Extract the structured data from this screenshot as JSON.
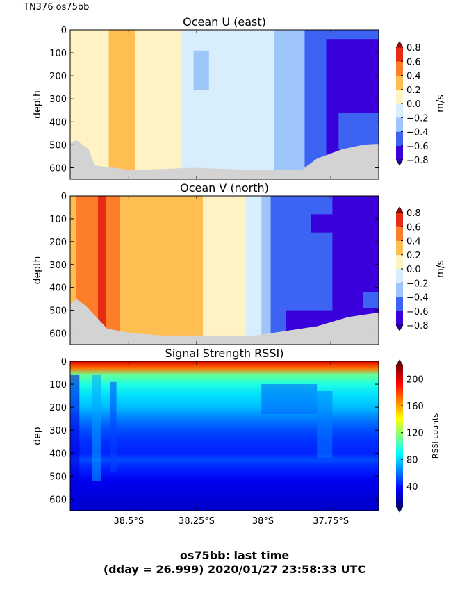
{
  "header_label": "TN376 os75bb",
  "figure_title": {
    "line1": "os75bb: last time",
    "line2": "(dday = 26.999) 2020/01/27 23:58:33 UTC"
  },
  "chart_data": [
    {
      "type": "heatmap",
      "title": "Ocean U (east)",
      "ylabel": "depth",
      "ylim": [
        650,
        0
      ],
      "yticks": [
        0,
        100,
        200,
        300,
        400,
        500,
        600
      ],
      "xlim": [
        "38.7°S",
        "37.6°S"
      ],
      "colorbar": {
        "label": "m/s",
        "ticks": [
          "0.8",
          "0.6",
          "0.4",
          "0.2",
          "0.0",
          "−0.2",
          "−0.4",
          "−0.6",
          "−0.8"
        ],
        "min": -0.8,
        "max": 0.8,
        "levels": [
          {
            "from": -0.8,
            "to": -0.6,
            "color": "#3a00dc"
          },
          {
            "from": -0.6,
            "to": -0.4,
            "color": "#3c63f2"
          },
          {
            "from": -0.4,
            "to": -0.2,
            "color": "#9ec6fb"
          },
          {
            "from": -0.2,
            "to": 0.0,
            "color": "#d9eefd"
          },
          {
            "from": 0.0,
            "to": 0.2,
            "color": "#fff3c5"
          },
          {
            "from": 0.2,
            "to": 0.4,
            "color": "#ffbe52"
          },
          {
            "from": 0.4,
            "to": 0.6,
            "color": "#fd7d2a"
          },
          {
            "from": 0.6,
            "to": 0.8,
            "color": "#e62d14"
          }
        ]
      },
      "bands": [
        {
          "x_from": 0.0,
          "x_to": 0.125,
          "value": 0.1
        },
        {
          "x_from": 0.125,
          "x_to": 0.21,
          "value": 0.3
        },
        {
          "x_from": 0.21,
          "x_to": 0.36,
          "value": 0.1
        },
        {
          "x_from": 0.36,
          "x_to": 0.6,
          "value": -0.1
        },
        {
          "x_from": 0.6,
          "x_to": 0.66,
          "value": -0.1
        },
        {
          "x_from": 0.66,
          "x_to": 0.76,
          "value": -0.3
        },
        {
          "x_from": 0.76,
          "x_to": 0.83,
          "value": -0.5
        },
        {
          "x_from": 0.83,
          "x_to": 1.0,
          "value": -0.7
        }
      ],
      "patches": [
        {
          "x_from": 0.4,
          "x_to": 0.45,
          "y_from": 90,
          "y_to": 260,
          "value": -0.3
        },
        {
          "x_from": 0.82,
          "x_to": 1.0,
          "y_from": 0,
          "y_to": 40,
          "value": -0.5
        },
        {
          "x_from": 0.87,
          "x_to": 1.0,
          "y_from": 360,
          "y_to": 520,
          "value": -0.5
        }
      ],
      "no_data_bottom": [
        [
          0.0,
          490
        ],
        [
          0.02,
          480
        ],
        [
          0.06,
          520
        ],
        [
          0.08,
          590
        ],
        [
          0.2,
          610
        ],
        [
          0.4,
          600
        ],
        [
          0.6,
          610
        ],
        [
          0.75,
          610
        ],
        [
          0.8,
          560
        ],
        [
          0.88,
          520
        ],
        [
          0.95,
          500
        ],
        [
          1.0,
          495
        ]
      ]
    },
    {
      "type": "heatmap",
      "title": "Ocean V (north)",
      "ylabel": "depth",
      "ylim": [
        650,
        0
      ],
      "yticks": [
        0,
        100,
        200,
        300,
        400,
        500,
        600
      ],
      "xlim": [
        "38.7°S",
        "37.6°S"
      ],
      "colorbar": {
        "label": "m/s",
        "ticks": [
          "0.8",
          "0.6",
          "0.4",
          "0.2",
          "0.0",
          "−0.2",
          "−0.4",
          "−0.6",
          "−0.8"
        ],
        "min": -0.8,
        "max": 0.8,
        "levels": [
          {
            "from": -0.8,
            "to": -0.6,
            "color": "#3a00dc"
          },
          {
            "from": -0.6,
            "to": -0.4,
            "color": "#3c63f2"
          },
          {
            "from": -0.4,
            "to": -0.2,
            "color": "#9ec6fb"
          },
          {
            "from": -0.2,
            "to": 0.0,
            "color": "#d9eefd"
          },
          {
            "from": 0.0,
            "to": 0.2,
            "color": "#fff3c5"
          },
          {
            "from": 0.2,
            "to": 0.4,
            "color": "#ffbe52"
          },
          {
            "from": 0.4,
            "to": 0.6,
            "color": "#fd7d2a"
          },
          {
            "from": 0.6,
            "to": 0.8,
            "color": "#e62d14"
          }
        ]
      },
      "bands": [
        {
          "x_from": 0.0,
          "x_to": 0.02,
          "value": 0.3
        },
        {
          "x_from": 0.02,
          "x_to": 0.09,
          "value": 0.5
        },
        {
          "x_from": 0.09,
          "x_to": 0.115,
          "value": 0.7
        },
        {
          "x_from": 0.115,
          "x_to": 0.16,
          "value": 0.5
        },
        {
          "x_from": 0.16,
          "x_to": 0.43,
          "value": 0.3
        },
        {
          "x_from": 0.43,
          "x_to": 0.57,
          "value": 0.1
        },
        {
          "x_from": 0.57,
          "x_to": 0.62,
          "value": -0.1
        },
        {
          "x_from": 0.62,
          "x_to": 0.65,
          "value": -0.3
        },
        {
          "x_from": 0.65,
          "x_to": 0.7,
          "value": -0.5
        },
        {
          "x_from": 0.7,
          "x_to": 1.0,
          "value": -0.7
        }
      ],
      "patches": [
        {
          "x_from": 0.7,
          "x_to": 0.85,
          "y_from": 0,
          "y_to": 500,
          "value": -0.5
        },
        {
          "x_from": 0.78,
          "x_to": 0.9,
          "y_from": 80,
          "y_to": 160,
          "value": -0.7
        },
        {
          "x_from": 0.95,
          "x_to": 1.0,
          "y_from": 420,
          "y_to": 490,
          "value": -0.5
        }
      ],
      "no_data_bottom": [
        [
          0.0,
          470
        ],
        [
          0.02,
          450
        ],
        [
          0.05,
          480
        ],
        [
          0.12,
          580
        ],
        [
          0.2,
          600
        ],
        [
          0.3,
          610
        ],
        [
          0.6,
          610
        ],
        [
          0.8,
          570
        ],
        [
          0.9,
          530
        ],
        [
          1.0,
          510
        ]
      ]
    },
    {
      "type": "heatmap",
      "title": "Signal Strength RSSI)",
      "ylabel": "dep",
      "ylim": [
        650,
        0
      ],
      "yticks": [
        0,
        100,
        200,
        300,
        400,
        500,
        600
      ],
      "xlim": [
        "38.7°S",
        "37.6°S"
      ],
      "xticks": [
        "38.5°S",
        "38.25°S",
        "38°S",
        "37.75°S"
      ],
      "colorbar": {
        "label": "RSSI counts",
        "ticks": [
          "200",
          "160",
          "120",
          "80",
          "40"
        ],
        "min": 10,
        "max": 220,
        "stops": [
          "#00007f",
          "#0000ff",
          "#007fff",
          "#00ffff",
          "#7fff7f",
          "#ffff00",
          "#ff7f00",
          "#ff0000",
          "#7f0000"
        ]
      },
      "depth_profile": [
        {
          "depth": 0,
          "rssi": 200
        },
        {
          "depth": 30,
          "rssi": 170
        },
        {
          "depth": 60,
          "rssi": 110
        },
        {
          "depth": 100,
          "rssi": 95
        },
        {
          "depth": 150,
          "rssi": 82
        },
        {
          "depth": 200,
          "rssi": 75
        },
        {
          "depth": 250,
          "rssi": 62
        },
        {
          "depth": 300,
          "rssi": 52
        },
        {
          "depth": 350,
          "rssi": 46
        },
        {
          "depth": 400,
          "rssi": 43
        },
        {
          "depth": 430,
          "rssi": 52
        },
        {
          "depth": 460,
          "rssi": 44
        },
        {
          "depth": 520,
          "rssi": 33
        },
        {
          "depth": 600,
          "rssi": 28
        },
        {
          "depth": 650,
          "rssi": 25
        }
      ],
      "features": [
        {
          "x_from": 0.0,
          "x_to": 0.03,
          "y_from": 60,
          "y_to": 650,
          "rssi": 30
        },
        {
          "x_from": 0.07,
          "x_to": 0.1,
          "y_from": 60,
          "y_to": 520,
          "rssi": 70
        },
        {
          "x_from": 0.13,
          "x_to": 0.15,
          "y_from": 90,
          "y_to": 480,
          "rssi": 50
        },
        {
          "x_from": 0.62,
          "x_to": 0.8,
          "y_from": 100,
          "y_to": 230,
          "rssi": 55
        },
        {
          "x_from": 0.8,
          "x_to": 0.85,
          "y_from": 130,
          "y_to": 420,
          "rssi": 62
        }
      ]
    }
  ]
}
